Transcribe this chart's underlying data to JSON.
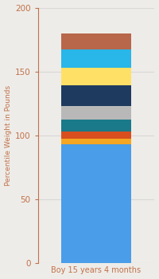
{
  "category": "Boy 15 years 4 months",
  "segments": [
    {
      "value": 93,
      "color": "#4a9de8"
    },
    {
      "value": 4,
      "color": "#f5a623"
    },
    {
      "value": 6,
      "color": "#d94e1f"
    },
    {
      "value": 9,
      "color": "#1a7a8a"
    },
    {
      "value": 11,
      "color": "#b8b8b8"
    },
    {
      "value": 16,
      "color": "#1e3a5f"
    },
    {
      "value": 14,
      "color": "#ffe066"
    },
    {
      "value": 14,
      "color": "#29b6e8"
    },
    {
      "value": 13,
      "color": "#b8674a"
    }
  ],
  "ylabel": "Percentile Weight in Pounds",
  "xlabel": "Boy 15 years 4 months",
  "ylim": [
    0,
    200
  ],
  "yticks": [
    0,
    50,
    100,
    150,
    200
  ],
  "bg_color": "#eeece8",
  "label_color": "#c0714a",
  "tick_color": "#4a9de8",
  "grid_color": "#d8d8d8",
  "bar_width": 0.6,
  "figsize": [
    2.0,
    3.5
  ],
  "dpi": 100
}
